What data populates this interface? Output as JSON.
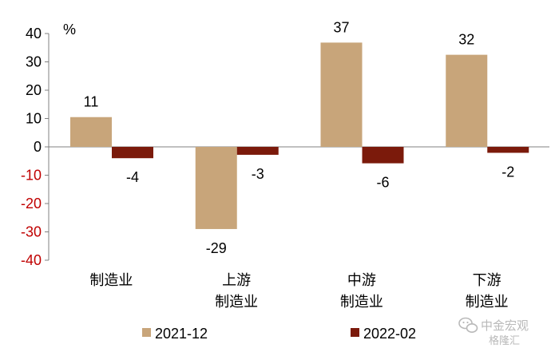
{
  "chart_data": {
    "type": "bar",
    "ylabel": "%",
    "ylim": [
      -40,
      40
    ],
    "yticks": [
      40,
      30,
      20,
      10,
      0,
      -10,
      -20,
      -30,
      -40
    ],
    "categories": [
      [
        "制造业"
      ],
      [
        "上游",
        "制造业"
      ],
      [
        "中游",
        "制造业"
      ],
      [
        "下游",
        "制造业"
      ]
    ],
    "series": [
      {
        "name": "2021-12",
        "color": "#C8A57A",
        "values": [
          10.5,
          -29,
          36.8,
          32.5
        ],
        "labels": [
          "11",
          "-29",
          "37",
          "32"
        ]
      },
      {
        "name": "2022-02",
        "color": "#7B1A0B",
        "values": [
          -4,
          -2.8,
          -5.8,
          -2.1
        ],
        "labels": [
          "-4",
          "-3",
          "-6",
          "-2"
        ]
      }
    ],
    "tick_colors": {
      "positive": "#000000",
      "negative": "#C00000"
    },
    "legend_position": "bottom",
    "grid": false
  },
  "watermark": {
    "text": "中金宏观",
    "icon": "wechat-icon",
    "logo": "格隆汇"
  }
}
